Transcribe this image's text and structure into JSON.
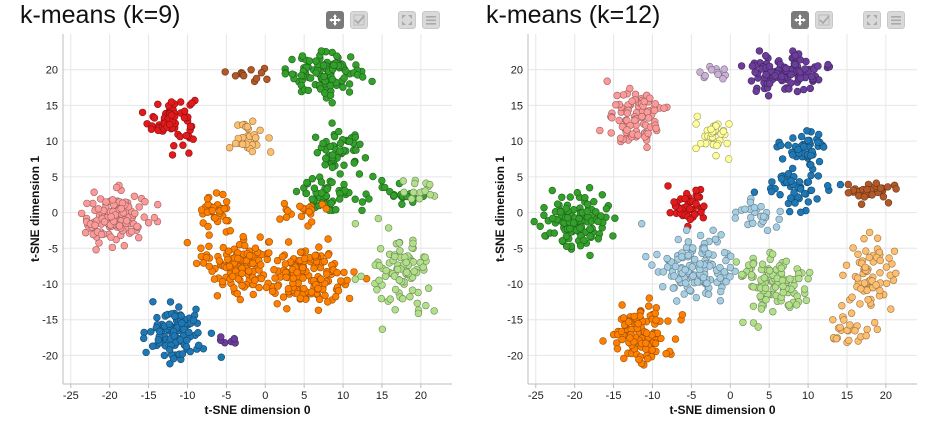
{
  "charts": [
    {
      "title": "k-means (k=9)",
      "toolbar": {
        "pan_icon": "move-arrows-icon",
        "select_icon": "check-icon",
        "reset_icon": "expand-icon",
        "menu_icon": "hamburger-menu-icon"
      },
      "colors": [
        "#e31a1c",
        "#b15928",
        "#33a02c",
        "#ff7f00",
        "#fdbf6f",
        "#fb9a99",
        "#1f78b4",
        "#b2df8a",
        "#6a3d9a"
      ]
    },
    {
      "title": "k-means (k=12)",
      "toolbar": {
        "pan_icon": "move-arrows-icon",
        "select_icon": "check-icon",
        "reset_icon": "expand-icon",
        "menu_icon": "hamburger-menu-icon"
      },
      "colors": [
        "#fb9a99",
        "#cab2d6",
        "#6a3d9a",
        "#ffff99",
        "#1f78b4",
        "#b15928",
        "#33a02c",
        "#e31a1c",
        "#a6cee3",
        "#b2df8a",
        "#fdbf6f",
        "#ff7f00"
      ]
    }
  ],
  "chart_data": [
    {
      "type": "scatter",
      "title": "k-means (k=9)",
      "xlabel": "t-SNE dimension 0",
      "ylabel": "t-SNE dimension 1",
      "xlim": [
        -26,
        24
      ],
      "ylim": [
        -24,
        25
      ],
      "xticks": [
        "-25",
        "-20",
        "-15",
        "-10",
        "-5",
        "0",
        "5",
        "10",
        "15",
        "20"
      ],
      "yticks": [
        "20",
        "15",
        "10",
        "5",
        "0",
        "-5",
        "-10",
        "-15",
        "-20"
      ],
      "grid": true,
      "clusters": [
        {
          "color": "#e31a1c",
          "cx": -12,
          "cy": 13,
          "sx": 2.0,
          "sy": 2.3,
          "n": 70
        },
        {
          "color": "#b15928",
          "cx": -2,
          "cy": 19.5,
          "sx": 1.2,
          "sy": 0.7,
          "n": 12
        },
        {
          "color": "#33a02c",
          "cx": 7.5,
          "cy": 19.5,
          "sx": 3.2,
          "sy": 1.8,
          "n": 110
        },
        {
          "color": "#33a02c",
          "cx": 9.5,
          "cy": 8.5,
          "sx": 2.2,
          "sy": 1.8,
          "n": 55
        },
        {
          "color": "#33a02c",
          "cx": 8.5,
          "cy": 2.5,
          "sx": 2.8,
          "sy": 1.8,
          "n": 55
        },
        {
          "color": "#33a02c",
          "cx": 17,
          "cy": 3,
          "sx": 2.2,
          "sy": 1.0,
          "n": 20
        },
        {
          "color": "#fdbf6f",
          "cx": -2,
          "cy": 10.5,
          "sx": 1.2,
          "sy": 1.5,
          "n": 30
        },
        {
          "color": "#fb9a99",
          "cx": -19.5,
          "cy": -1,
          "sx": 2.8,
          "sy": 2.5,
          "n": 130
        },
        {
          "color": "#ff7f00",
          "cx": -3.5,
          "cy": -7,
          "sx": 3.0,
          "sy": 2.8,
          "n": 120
        },
        {
          "color": "#ff7f00",
          "cx": 5.5,
          "cy": -9,
          "sx": 3.8,
          "sy": 3.0,
          "n": 150
        },
        {
          "color": "#ff7f00",
          "cx": -6.5,
          "cy": 0,
          "sx": 1.3,
          "sy": 2.0,
          "n": 30
        },
        {
          "color": "#ff7f00",
          "cx": 5,
          "cy": 0,
          "sx": 2.0,
          "sy": 1.0,
          "n": 20
        },
        {
          "color": "#b2df8a",
          "cx": 17.5,
          "cy": -8.5,
          "sx": 2.5,
          "sy": 3.5,
          "n": 90
        },
        {
          "color": "#b2df8a",
          "cx": 20,
          "cy": 3,
          "sx": 1.5,
          "sy": 1.0,
          "n": 15
        },
        {
          "color": "#1f78b4",
          "cx": -11.5,
          "cy": -17,
          "sx": 2.3,
          "sy": 2.5,
          "n": 110
        },
        {
          "color": "#6a3d9a",
          "cx": -5,
          "cy": -18,
          "sx": 0.8,
          "sy": 0.3,
          "n": 6
        }
      ]
    },
    {
      "type": "scatter",
      "title": "k-means (k=12)",
      "xlabel": "t-SNE dimension 0",
      "ylabel": "t-SNE dimension 1",
      "xlim": [
        -26,
        24
      ],
      "ylim": [
        -24,
        25
      ],
      "xticks": [
        "-25",
        "-20",
        "-15",
        "-10",
        "-5",
        "0",
        "5",
        "10",
        "15",
        "20"
      ],
      "yticks": [
        "20",
        "15",
        "10",
        "5",
        "0",
        "-5",
        "-10",
        "-15",
        "-20"
      ],
      "grid": true,
      "clusters": [
        {
          "color": "#fb9a99",
          "cx": -12,
          "cy": 13,
          "sx": 2.3,
          "sy": 2.5,
          "n": 90
        },
        {
          "color": "#cab2d6",
          "cx": -2,
          "cy": 19.5,
          "sx": 1.2,
          "sy": 0.7,
          "n": 12
        },
        {
          "color": "#6a3d9a",
          "cx": 7,
          "cy": 19.5,
          "sx": 3.2,
          "sy": 1.8,
          "n": 110
        },
        {
          "color": "#ffff99",
          "cx": -2,
          "cy": 11,
          "sx": 1.5,
          "sy": 1.8,
          "n": 35
        },
        {
          "color": "#1f78b4",
          "cx": 9.5,
          "cy": 9,
          "sx": 2.0,
          "sy": 1.8,
          "n": 50
        },
        {
          "color": "#1f78b4",
          "cx": 8,
          "cy": 3,
          "sx": 2.5,
          "sy": 1.5,
          "n": 45
        },
        {
          "color": "#b15928",
          "cx": 18.5,
          "cy": 3,
          "sx": 2.3,
          "sy": 0.9,
          "n": 40
        },
        {
          "color": "#33a02c",
          "cx": -20,
          "cy": -1.5,
          "sx": 2.8,
          "sy": 2.8,
          "n": 120
        },
        {
          "color": "#e31a1c",
          "cx": -5.5,
          "cy": 1,
          "sx": 1.6,
          "sy": 1.8,
          "n": 40
        },
        {
          "color": "#a6cee3",
          "cx": -4.5,
          "cy": -8,
          "sx": 3.5,
          "sy": 3.0,
          "n": 130
        },
        {
          "color": "#a6cee3",
          "cx": 3.5,
          "cy": -0.5,
          "sx": 2.0,
          "sy": 1.5,
          "n": 25
        },
        {
          "color": "#b2df8a",
          "cx": 5.5,
          "cy": -10,
          "sx": 3.0,
          "sy": 2.8,
          "n": 110
        },
        {
          "color": "#fdbf6f",
          "cx": 18,
          "cy": -9,
          "sx": 2.5,
          "sy": 3.5,
          "n": 70
        },
        {
          "color": "#fdbf6f",
          "cx": 15,
          "cy": -16,
          "sx": 2.0,
          "sy": 1.5,
          "n": 25
        },
        {
          "color": "#ff7f00",
          "cx": -11.5,
          "cy": -17,
          "sx": 2.5,
          "sy": 2.6,
          "n": 120
        }
      ]
    }
  ]
}
